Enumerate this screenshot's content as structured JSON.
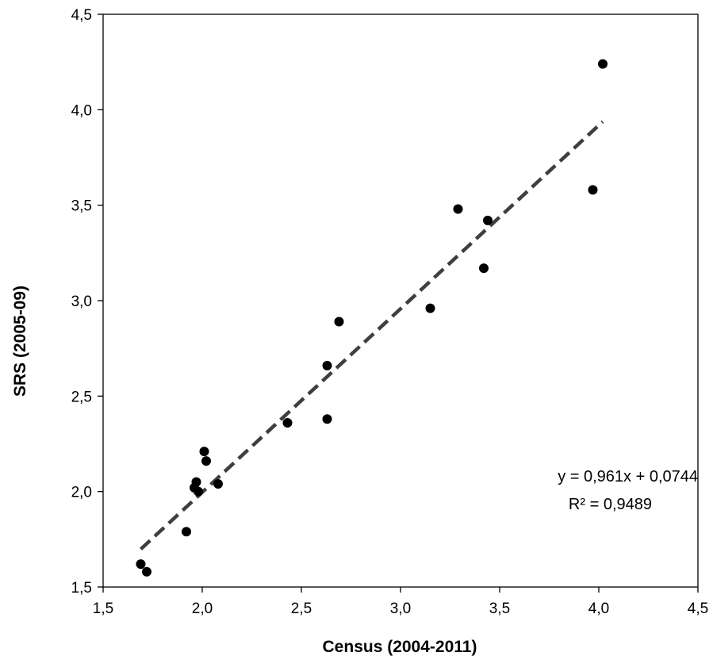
{
  "chart_data": {
    "type": "scatter",
    "xlabel": "Census (2004-2011)",
    "ylabel": "SRS (2005-09)",
    "xlim": [
      1.5,
      4.5
    ],
    "ylim": [
      1.5,
      4.5
    ],
    "x_ticks": [
      1.5,
      2.0,
      2.5,
      3.0,
      3.5,
      4.0,
      4.5
    ],
    "y_ticks": [
      1.5,
      2.0,
      2.5,
      3.0,
      3.5,
      4.0,
      4.5
    ],
    "x_tick_labels": [
      "1,5",
      "2,0",
      "2,5",
      "3,0",
      "3,5",
      "4,0",
      "4,5"
    ],
    "y_tick_labels": [
      "1,5",
      "2,0",
      "2,5",
      "3,0",
      "3,5",
      "4,0",
      "4,5"
    ],
    "grid": false,
    "marker_color": "#000000",
    "trendline_color": "#3f3f3f",
    "series": [
      {
        "points": [
          {
            "x": 1.69,
            "y": 1.62
          },
          {
            "x": 1.72,
            "y": 1.58
          },
          {
            "x": 1.92,
            "y": 1.79
          },
          {
            "x": 1.96,
            "y": 2.02
          },
          {
            "x": 1.97,
            "y": 2.05
          },
          {
            "x": 1.98,
            "y": 2.0
          },
          {
            "x": 2.01,
            "y": 2.21
          },
          {
            "x": 2.02,
            "y": 2.16
          },
          {
            "x": 2.08,
            "y": 2.04
          },
          {
            "x": 2.43,
            "y": 2.36
          },
          {
            "x": 2.63,
            "y": 2.38
          },
          {
            "x": 2.63,
            "y": 2.66
          },
          {
            "x": 2.69,
            "y": 2.89
          },
          {
            "x": 3.15,
            "y": 2.96
          },
          {
            "x": 3.29,
            "y": 3.48
          },
          {
            "x": 3.42,
            "y": 3.17
          },
          {
            "x": 3.44,
            "y": 3.42
          },
          {
            "x": 3.97,
            "y": 3.58
          },
          {
            "x": 4.02,
            "y": 4.24
          }
        ]
      }
    ],
    "trendline": {
      "slope": 0.961,
      "intercept": 0.0744,
      "x_range": [
        1.69,
        4.02
      ],
      "style": "dashed"
    },
    "annotations": {
      "equation": "y = 0,961x + 0,0744",
      "r_squared": "R² = 0,9489"
    }
  }
}
